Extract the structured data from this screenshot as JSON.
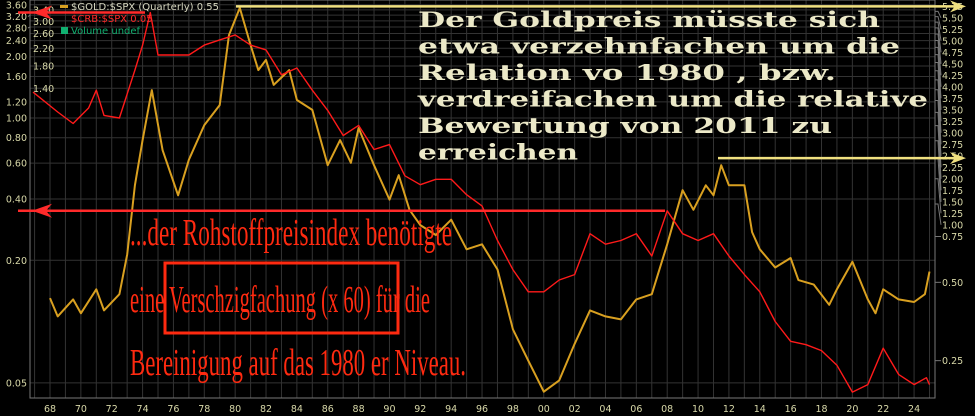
{
  "chart_data": {
    "type": "line",
    "scale": "log",
    "grid": true,
    "legend_placement": "top-left",
    "legend": [
      {
        "label": "$GOLD:$SPX (Quarterly) 0.55",
        "color": "#d9a020"
      },
      {
        "label": "$CRB:$SPX 0.05",
        "color": "#ff1a1a"
      },
      {
        "label": "Volume undef",
        "color": "#10b070"
      }
    ],
    "x_ticks": [
      "68",
      "70",
      "72",
      "74",
      "76",
      "78",
      "80",
      "82",
      "84",
      "86",
      "88",
      "90",
      "92",
      "94",
      "96",
      "98",
      "00",
      "02",
      "04",
      "06",
      "08",
      "10",
      "12",
      "14",
      "16",
      "18",
      "20",
      "22",
      "24"
    ],
    "left_axis_ticks": [
      "3.60",
      "3.40",
      "3.20",
      "3.00",
      "2.80",
      "2.60",
      "2.40",
      "2.20",
      "2.00",
      "1.80",
      "1.60",
      "1.40",
      "1.20",
      "1.00",
      "0.80",
      "0.60",
      "0.40",
      "0.20",
      "0.05"
    ],
    "right_axis_ticks": [
      "5.75",
      "5.50",
      "5.25",
      "5.00",
      "4.75",
      "4.50",
      "4.25",
      "4.00",
      "3.75",
      "3.50",
      "3.25",
      "3.00",
      "2.75",
      "2.50",
      "2.25",
      "2.00",
      "1.75",
      "1.50",
      "1.25",
      "1.00",
      "0.75",
      "0.50",
      "0.25"
    ],
    "xlim": [
      1966.8,
      2025.6
    ],
    "series": [
      {
        "name": "$GOLD:$SPX",
        "axis": "right",
        "color": "#d9a020",
        "ylim": [
          0.17,
          6.0
        ],
        "x": [
          1968,
          1968.5,
          1969.5,
          1970,
          1971,
          1971.5,
          1972.5,
          1973,
          1973.5,
          1974,
          1974.6,
          1975.3,
          1976.3,
          1977,
          1978,
          1979,
          1979.6,
          1980.3,
          1981,
          1981.5,
          1982,
          1982.5,
          1983.5,
          1984,
          1985,
          1986,
          1986.8,
          1987.5,
          1988,
          1989,
          1990,
          1990.6,
          1991.3,
          1992,
          1993,
          1994,
          1995,
          1996,
          1997,
          1998,
          1999,
          2000,
          2001,
          2002,
          2003,
          2004,
          2005,
          2006,
          2007,
          2008,
          2009,
          2009.7,
          2010.5,
          2011,
          2011.5,
          2012,
          2013,
          2013.5,
          2014,
          2015,
          2016,
          2016.5,
          2017.5,
          2018.5,
          2019,
          2020,
          2021,
          2021.5,
          2022,
          2023,
          2024,
          2024.7,
          2025
        ],
        "values": [
          0.435,
          0.37,
          0.43,
          0.38,
          0.47,
          0.39,
          0.45,
          0.64,
          1.18,
          1.76,
          2.74,
          1.61,
          1.08,
          1.48,
          2.01,
          2.4,
          4.46,
          5.67,
          4.08,
          3.27,
          3.58,
          2.87,
          3.27,
          2.51,
          2.3,
          1.41,
          1.76,
          1.44,
          1.96,
          1.41,
          1.04,
          1.29,
          0.95,
          0.83,
          0.76,
          0.87,
          0.67,
          0.7,
          0.56,
          0.33,
          0.25,
          0.19,
          0.21,
          0.29,
          0.39,
          0.37,
          0.36,
          0.43,
          0.45,
          0.7,
          1.13,
          0.95,
          1.18,
          1.08,
          1.41,
          1.18,
          1.18,
          0.78,
          0.67,
          0.57,
          0.62,
          0.51,
          0.49,
          0.41,
          0.47,
          0.6,
          0.43,
          0.38,
          0.47,
          0.43,
          0.42,
          0.45,
          0.55
        ]
      },
      {
        "name": "$CRB:$SPX",
        "axis": "left",
        "color": "#ff1a1a",
        "ylim": [
          0.045,
          3.7
        ],
        "x": [
          1966.9,
          1968.5,
          1969.5,
          1970.5,
          1971,
          1971.5,
          1972.5,
          1973.5,
          1974,
          1974.5,
          1975,
          1976,
          1977,
          1978,
          1979,
          1980,
          1981,
          1982,
          1983,
          1984,
          1985,
          1986,
          1987,
          1988,
          1989,
          1990,
          1991,
          1992,
          1993,
          1994,
          1995,
          1996,
          1997,
          1998,
          1999,
          2000,
          2001,
          2002,
          2003,
          2004,
          2005,
          2006,
          2007,
          2008,
          2009,
          2010,
          2011,
          2012,
          2013,
          2014,
          2015,
          2016,
          2017,
          2018,
          2019,
          2020,
          2021,
          2022,
          2023,
          2024,
          2024.8,
          2025
        ],
        "values": [
          1.34,
          1.07,
          0.94,
          1.12,
          1.37,
          1.03,
          1.0,
          1.72,
          2.28,
          3.3,
          2.04,
          2.04,
          2.04,
          2.28,
          2.42,
          2.56,
          2.28,
          2.16,
          1.63,
          1.76,
          1.37,
          1.09,
          0.82,
          0.92,
          0.7,
          0.74,
          0.52,
          0.47,
          0.5,
          0.5,
          0.42,
          0.37,
          0.25,
          0.18,
          0.14,
          0.14,
          0.16,
          0.17,
          0.27,
          0.24,
          0.25,
          0.27,
          0.21,
          0.35,
          0.27,
          0.25,
          0.27,
          0.21,
          0.17,
          0.14,
          0.1,
          0.08,
          0.077,
          0.072,
          0.061,
          0.045,
          0.049,
          0.074,
          0.055,
          0.049,
          0.053,
          0.049
        ]
      }
    ],
    "annotations": {
      "gold_text": [
        "Der Goldpreis müsste sich",
        "etwa verzehnfachen um die",
        "Relation vo 1980 , bzw.",
        "verdreifachen um die relative",
        "Bewertung von 2011 zu",
        "erreichen"
      ],
      "crb_text": [
        "...der Rohstoffpreisindex benötigte",
        "eine Verschzigfachung (x 60) für die",
        "Bereinigung auf das 1980 er Niveau."
      ],
      "gold_lines": [
        5.75,
        1.5
      ],
      "crb_lines": [
        3.3,
        0.35
      ]
    }
  }
}
